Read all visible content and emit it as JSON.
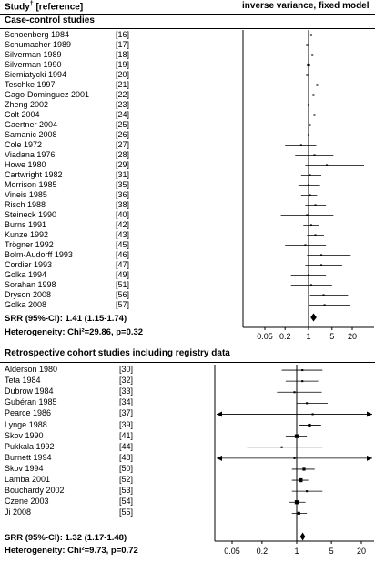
{
  "header": {
    "left_title": "Study",
    "left_sup": "†",
    "left_suffix": " [reference]",
    "right_title": "inverse variance, fixed model"
  },
  "sections": [
    {
      "title": "Case-control studies",
      "srr_label": "SRR (95%-CI): 1.41 (1.15-1.74)",
      "heterogeneity_label": "Heterogeneity: Chi²=29.86, p=0.32",
      "axis_ticks": [
        "0.05",
        "0.2",
        "1",
        "5",
        "20"
      ]
    },
    {
      "title": "Retrospective cohort studies including registry data",
      "srr_label": "SRR (95%-CI): 1.32 (1.17-1.48)",
      "heterogeneity_label": "Heterogeneity: Chi²=9.73, p=0.72",
      "axis_ticks": [
        "0.05",
        "0.2",
        "1",
        "5",
        "20"
      ]
    }
  ],
  "chart_data": [
    {
      "type": "forest",
      "title": "Case-control studies",
      "x_scale": "log",
      "xlim": [
        0.035,
        30
      ],
      "reference_line": 1,
      "studies": [
        {
          "name": "Schoenberg 1984",
          "ref": "[16]",
          "rr": 1.2,
          "lo": 0.9,
          "hi": 1.7,
          "w": 1
        },
        {
          "name": "Schumacher 1989",
          "ref": "[17]",
          "rr": 0.9,
          "lo": 0.16,
          "hi": 4.6,
          "w": 1
        },
        {
          "name": "Silverman 1989",
          "ref": "[18]",
          "rr": 1.3,
          "lo": 0.8,
          "hi": 2.0,
          "w": 1
        },
        {
          "name": "Silverman 1990",
          "ref": "[19]",
          "rr": 1.0,
          "lo": 0.6,
          "hi": 1.8,
          "w": 2
        },
        {
          "name": "Siemiatycki 1994",
          "ref": "[20]",
          "rr": 0.9,
          "lo": 0.3,
          "hi": 2.6,
          "w": 1
        },
        {
          "name": "Teschke 1997",
          "ref": "[21]",
          "rr": 1.8,
          "lo": 0.6,
          "hi": 11.0,
          "w": 1
        },
        {
          "name": "Gago-Dominguez 2001",
          "ref": "[22]",
          "rr": 1.4,
          "lo": 0.9,
          "hi": 2.3,
          "w": 1
        },
        {
          "name": "Zheng 2002",
          "ref": "[23]",
          "rr": 1.0,
          "lo": 0.3,
          "hi": 3.0,
          "w": 1
        },
        {
          "name": "Colt 2004",
          "ref": "[24]",
          "rr": 1.5,
          "lo": 0.5,
          "hi": 4.7,
          "w": 1
        },
        {
          "name": "Gaertner 2004",
          "ref": "[25]",
          "rr": 1.1,
          "lo": 0.6,
          "hi": 2.1,
          "w": 1
        },
        {
          "name": "Samanic 2008",
          "ref": "[26]",
          "rr": 1.0,
          "lo": 0.5,
          "hi": 2.0,
          "w": 1
        },
        {
          "name": "Cole 1972",
          "ref": "[27]",
          "rr": 0.6,
          "lo": 0.2,
          "hi": 1.7,
          "w": 1
        },
        {
          "name": "Viadana 1976",
          "ref": "[28]",
          "rr": 1.5,
          "lo": 0.4,
          "hi": 5.5,
          "w": 1
        },
        {
          "name": "Howe 1980",
          "ref": "[29]",
          "rr": 3.5,
          "lo": 0.8,
          "hi": 45,
          "w": 1
        },
        {
          "name": "Cartwright 1982",
          "ref": "[31]",
          "rr": 1.1,
          "lo": 0.6,
          "hi": 2.4,
          "w": 1
        },
        {
          "name": "Morrison 1985",
          "ref": "[35]",
          "rr": 1.0,
          "lo": 0.5,
          "hi": 2.2,
          "w": 1
        },
        {
          "name": "Vineis 1985",
          "ref": "[36]",
          "rr": 1.1,
          "lo": 0.6,
          "hi": 1.8,
          "w": 1
        },
        {
          "name": "Risch 1988",
          "ref": "[38]",
          "rr": 1.6,
          "lo": 0.8,
          "hi": 3.3,
          "w": 1
        },
        {
          "name": "Steineck 1990",
          "ref": "[40]",
          "rr": 0.9,
          "lo": 0.15,
          "hi": 5.5,
          "w": 1
        },
        {
          "name": "Burns 1991",
          "ref": "[42]",
          "rr": 1.2,
          "lo": 0.7,
          "hi": 2.1,
          "w": 1
        },
        {
          "name": "Kunze 1992",
          "ref": "[43]",
          "rr": 1.6,
          "lo": 0.9,
          "hi": 2.9,
          "w": 1
        },
        {
          "name": "Trögner 1992",
          "ref": "[45]",
          "rr": 0.8,
          "lo": 0.2,
          "hi": 3.3,
          "w": 1
        },
        {
          "name": "Bolm-Audorff 1993",
          "ref": "[46]",
          "rr": 2.4,
          "lo": 0.9,
          "hi": 18,
          "w": 1
        },
        {
          "name": "Cordier 1993",
          "ref": "[47]",
          "rr": 2.4,
          "lo": 0.8,
          "hi": 10,
          "w": 1
        },
        {
          "name": "Golka 1994",
          "ref": "[49]",
          "rr": 1.0,
          "lo": 0.3,
          "hi": 3.3,
          "w": 1
        },
        {
          "name": "Sorahan 1998",
          "ref": "[51]",
          "rr": 1.2,
          "lo": 0.3,
          "hi": 5.0,
          "w": 1
        },
        {
          "name": "Dryson 2008",
          "ref": "[56]",
          "rr": 2.8,
          "lo": 1.1,
          "hi": 15,
          "w": 1
        },
        {
          "name": "Golka 2008",
          "ref": "[57]",
          "rr": 3.0,
          "lo": 1.0,
          "hi": 17,
          "w": 1
        }
      ],
      "summary": {
        "rr": 1.41,
        "lo": 1.15,
        "hi": 1.74
      }
    },
    {
      "type": "forest",
      "title": "Retrospective cohort studies including registry data",
      "x_scale": "log",
      "xlim": [
        0.035,
        30
      ],
      "reference_line": 1,
      "studies": [
        {
          "name": "Alderson 1980",
          "ref": "[30]",
          "rr": 1.3,
          "lo": 0.5,
          "hi": 3.3,
          "w": 1
        },
        {
          "name": "Teta 1984",
          "ref": "[32]",
          "rr": 1.3,
          "lo": 0.6,
          "hi": 2.7,
          "w": 1
        },
        {
          "name": "Dubrow 1984",
          "ref": "[33]",
          "rr": 0.9,
          "lo": 0.4,
          "hi": 3.2,
          "w": 1
        },
        {
          "name": "Gubéran 1985",
          "ref": "[34]",
          "rr": 1.6,
          "lo": 1.0,
          "hi": 4.2,
          "w": 1
        },
        {
          "name": "Pearce 1986",
          "ref": "[37]",
          "rr": 2.1,
          "lo": 0.02,
          "hi": 45,
          "w": 1
        },
        {
          "name": "Lynge 1988",
          "ref": "[39]",
          "rr": 1.8,
          "lo": 1.1,
          "hi": 3.1,
          "w": 2
        },
        {
          "name": "Skov 1990",
          "ref": "[41]",
          "rr": 1.0,
          "lo": 0.6,
          "hi": 1.6,
          "w": 3
        },
        {
          "name": "Pukkala 1992",
          "ref": "[44]",
          "rr": 0.5,
          "lo": 0.1,
          "hi": 3.3,
          "w": 1
        },
        {
          "name": "Burnett 1994",
          "ref": "[48]",
          "rr": 0.9,
          "lo": 0.02,
          "hi": 45,
          "w": 1
        },
        {
          "name": "Skov 1994",
          "ref": "[50]",
          "rr": 1.4,
          "lo": 0.8,
          "hi": 2.3,
          "w": 2
        },
        {
          "name": "Lamba 2001",
          "ref": "[52]",
          "rr": 1.2,
          "lo": 0.8,
          "hi": 1.7,
          "w": 3
        },
        {
          "name": "Bouchardy 2002",
          "ref": "[53]",
          "rr": 1.6,
          "lo": 0.8,
          "hi": 3.3,
          "w": 1
        },
        {
          "name": "Czene 2003",
          "ref": "[54]",
          "rr": 1.0,
          "lo": 0.7,
          "hi": 1.5,
          "w": 3
        },
        {
          "name": "Ji 2008",
          "ref": "[55]",
          "rr": 1.1,
          "lo": 0.8,
          "hi": 1.6,
          "w": 2
        }
      ],
      "summary": {
        "rr": 1.32,
        "lo": 1.17,
        "hi": 1.48
      }
    }
  ]
}
